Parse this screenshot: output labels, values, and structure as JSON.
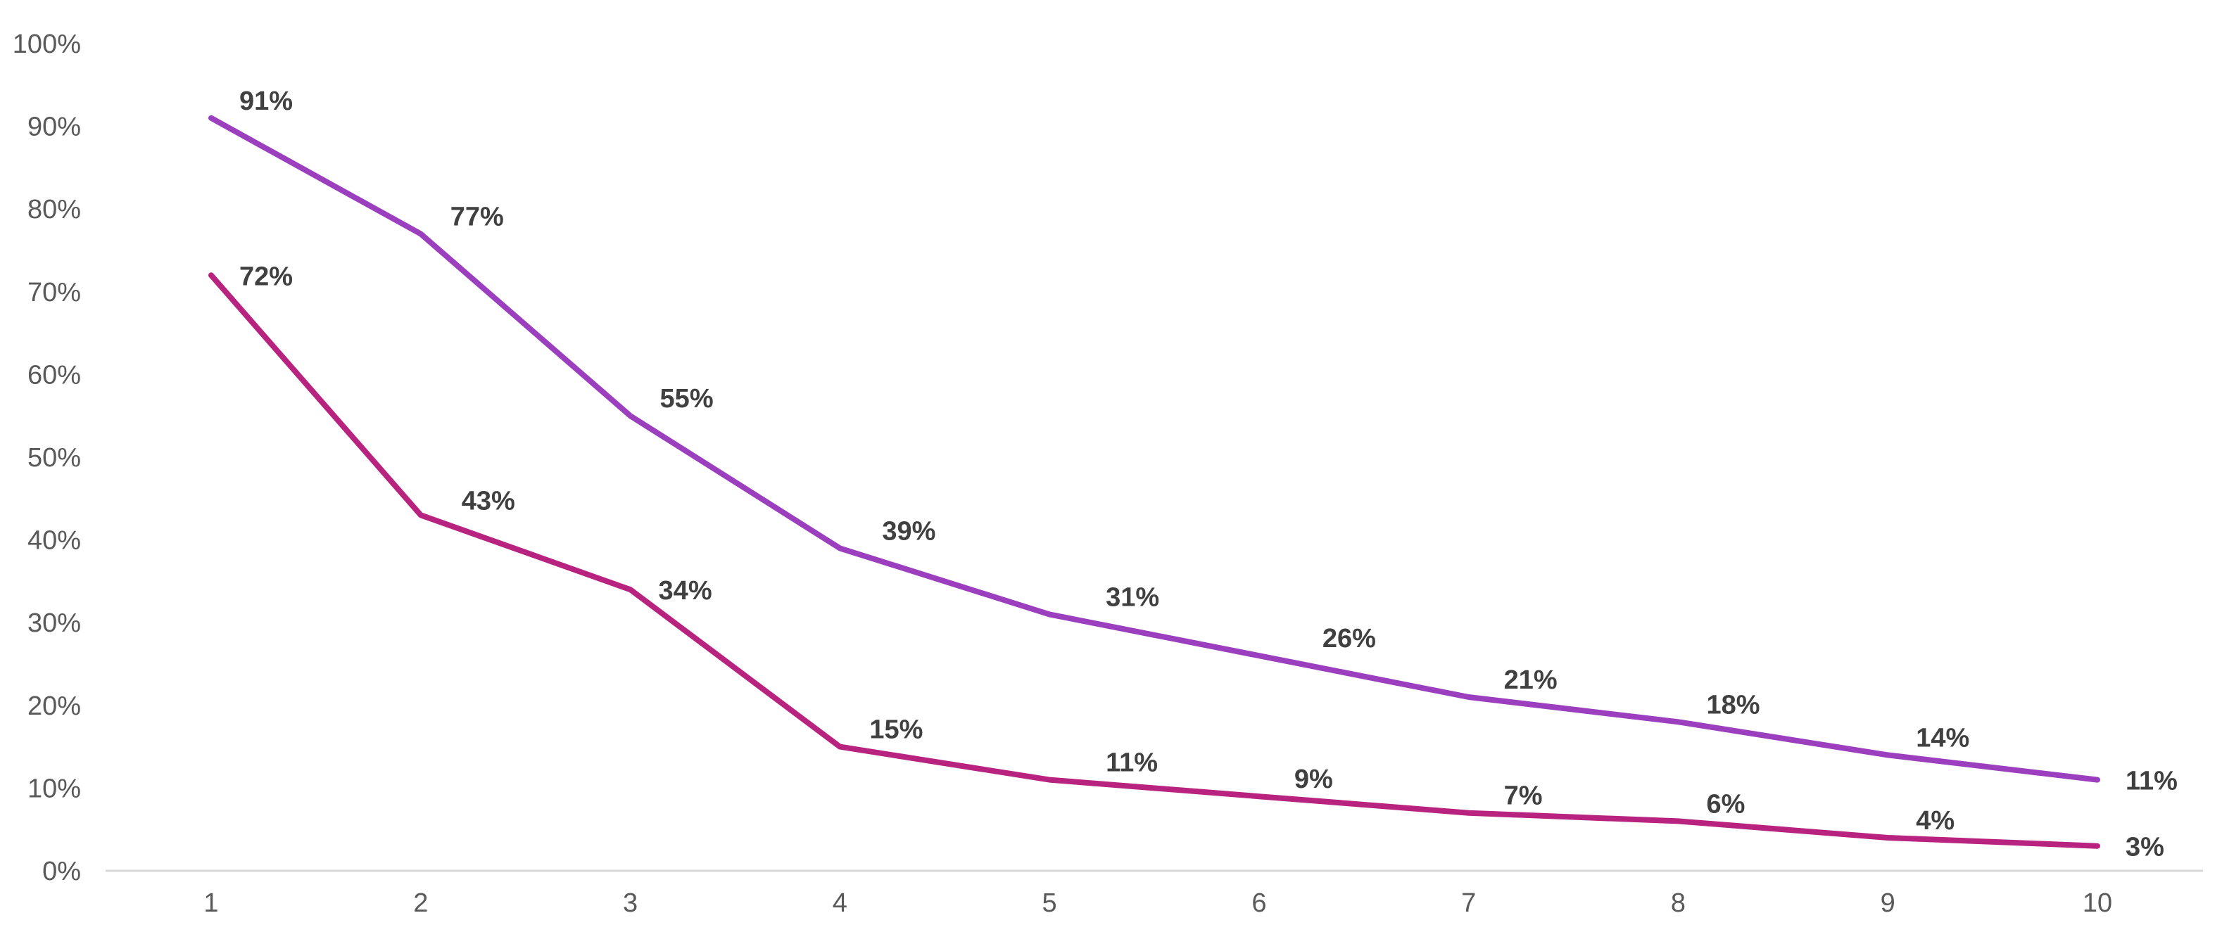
{
  "chart_data": {
    "type": "line",
    "title": "",
    "xlabel": "",
    "ylabel": "",
    "x": [
      1,
      2,
      3,
      4,
      5,
      6,
      7,
      8,
      9,
      10
    ],
    "x_tick_labels": [
      "1",
      "2",
      "3",
      "4",
      "5",
      "6",
      "7",
      "8",
      "9",
      "10"
    ],
    "y_tick_labels": [
      "0%",
      "10%",
      "20%",
      "30%",
      "40%",
      "50%",
      "60%",
      "70%",
      "80%",
      "90%",
      "100%"
    ],
    "ylim": [
      0,
      100
    ],
    "y_unit": "%",
    "grid": false,
    "legend": "none",
    "series": [
      {
        "color": "#9b3fbf",
        "values": [
          91,
          77,
          55,
          39,
          31,
          26,
          21,
          18,
          14,
          11
        ],
        "labels": [
          "91%",
          "77%",
          "55%",
          "39%",
          "31%",
          "26%",
          "21%",
          "18%",
          "14%",
          "11%"
        ]
      },
      {
        "color": "#b8237f",
        "values": [
          72,
          43,
          34,
          15,
          11,
          9,
          7,
          6,
          4,
          3
        ],
        "labels": [
          "72%",
          "43%",
          "34%",
          "15%",
          "11%",
          "9%",
          "7%",
          "6%",
          "4%",
          "3%"
        ]
      }
    ]
  }
}
